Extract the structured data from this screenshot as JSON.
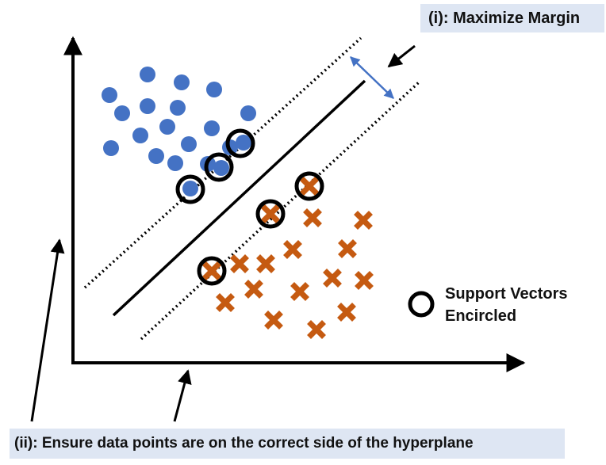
{
  "labels": {
    "maximize_margin": "(i): Maximize Margin",
    "correct_side": "(ii): Ensure data points are on the correct side of the hyperplane",
    "legend_line1": "Support Vectors",
    "legend_line2": "Encircled"
  },
  "colors": {
    "class_a": "#4472c4",
    "class_b": "#c55a11",
    "label_background": "#dee6f3",
    "margin_arrow": "#4472c4",
    "ink": "#000000"
  },
  "class_a_point_count": 22,
  "class_b_point_count": 22,
  "support_vector_count": 6
}
